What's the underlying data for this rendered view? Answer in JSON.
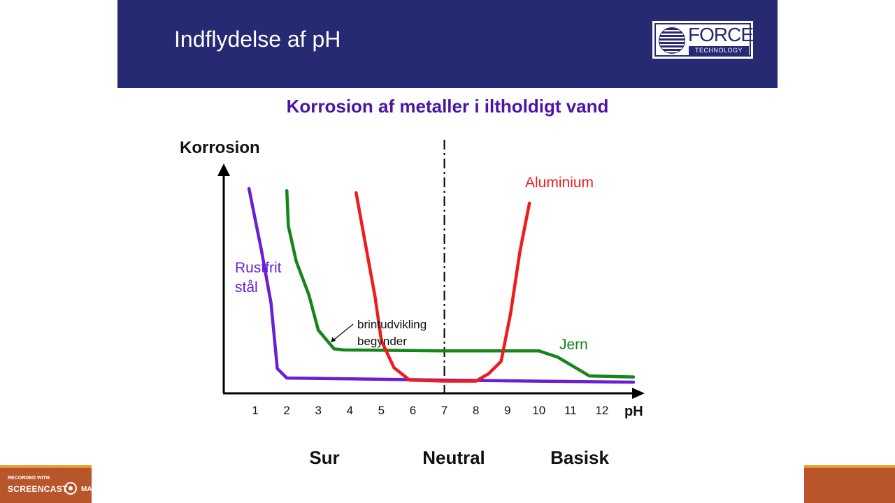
{
  "slide": {
    "title": "Indflydelse af pH"
  },
  "logo": {
    "word": "FORCE",
    "sub": "TECHNOLOGY"
  },
  "watermark": {
    "small": "RECORDED WITH",
    "big": "SCREENCAST",
    "tail": "MATIC"
  },
  "colors": {
    "header": "#262a73",
    "title": "#4b14a8",
    "stainless": "#6a1fd2",
    "iron": "#16851a",
    "aluminium": "#ee1c1c",
    "accent_bar": "#b8552a"
  },
  "chart_data": {
    "type": "line",
    "title": "Korrosion af metaller i iltholdigt vand",
    "ylabel": "Korrosion",
    "xlabel": "pH",
    "x_ticks": [
      "1",
      "2",
      "3",
      "4",
      "5",
      "6",
      "7",
      "8",
      "9",
      "10",
      "11",
      "12"
    ],
    "xlim": [
      0.0,
      13.2
    ],
    "ylim": [
      0,
      10
    ],
    "neutral_x": 7,
    "y_ticks_shown": false,
    "regions": [
      "Sur",
      "Neutral",
      "Basisk"
    ],
    "series": [
      {
        "name": "Rustfrit stål",
        "label_lines": [
          "Rustfrit",
          "stål"
        ],
        "color": "#6a1fd2",
        "points": [
          [
            0.8,
            9.5
          ],
          [
            1.2,
            6.5
          ],
          [
            1.5,
            4.0
          ],
          [
            1.7,
            0.85
          ],
          [
            2.0,
            0.4
          ],
          [
            7.0,
            0.3
          ],
          [
            13.0,
            0.2
          ]
        ]
      },
      {
        "name": "Jern",
        "label_lines": [
          "Jern"
        ],
        "color": "#16851a",
        "points": [
          [
            2.0,
            9.4
          ],
          [
            2.05,
            7.7
          ],
          [
            2.3,
            6.0
          ],
          [
            2.7,
            4.4
          ],
          [
            3.0,
            2.7
          ],
          [
            3.5,
            1.8
          ],
          [
            3.8,
            1.75
          ],
          [
            7.0,
            1.7
          ],
          [
            10.0,
            1.7
          ],
          [
            10.6,
            1.4
          ],
          [
            11.6,
            0.5
          ],
          [
            13.0,
            0.45
          ]
        ]
      },
      {
        "name": "Aluminium",
        "label_lines": [
          "Aluminium"
        ],
        "color": "#ee1c1c",
        "points": [
          [
            4.2,
            9.3
          ],
          [
            4.5,
            6.8
          ],
          [
            4.8,
            4.3
          ],
          [
            5.0,
            2.2
          ],
          [
            5.4,
            0.9
          ],
          [
            5.9,
            0.3
          ],
          [
            7.0,
            0.25
          ],
          [
            8.0,
            0.25
          ],
          [
            8.4,
            0.6
          ],
          [
            8.8,
            1.2
          ],
          [
            9.1,
            3.5
          ],
          [
            9.4,
            6.5
          ],
          [
            9.7,
            8.8
          ]
        ]
      }
    ],
    "annotations": [
      {
        "text_lines": [
          "brintudvikling",
          "begynder"
        ],
        "arrow_to": [
          3.4,
          2.1
        ]
      }
    ]
  }
}
